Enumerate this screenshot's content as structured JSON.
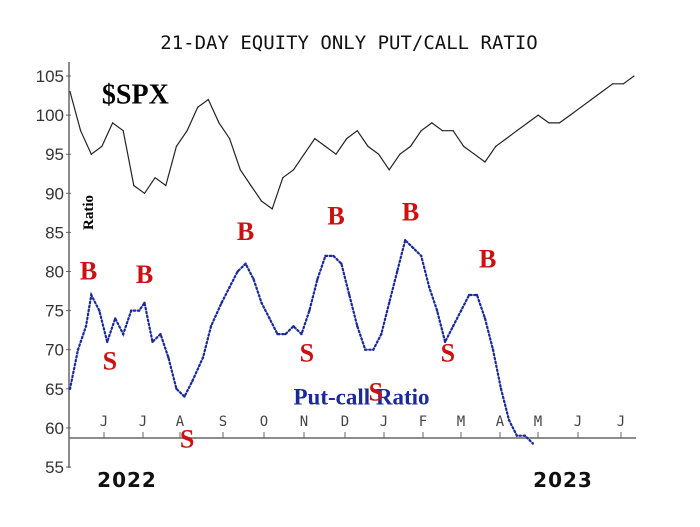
{
  "chart_data": {
    "type": "line",
    "title": "21-DAY EQUITY ONLY PUT/CALL RATIO",
    "ylabel": "Ratio",
    "ylim": [
      55,
      105
    ],
    "yticks": [
      105,
      100,
      95,
      90,
      85,
      80,
      75,
      70,
      65,
      60,
      55
    ],
    "x_month_labels": [
      "J",
      "J",
      "A",
      "S",
      "O",
      "N",
      "D",
      "J",
      "F",
      "M",
      "A",
      "M",
      "J",
      "J"
    ],
    "year_labels": [
      "2022",
      "2023"
    ],
    "grid": false,
    "series": [
      {
        "name": "$SPX",
        "style": "solid",
        "color": "#222222",
        "points": [
          [
            0,
            103
          ],
          [
            4,
            98
          ],
          [
            8,
            95
          ],
          [
            12,
            96
          ],
          [
            16,
            99
          ],
          [
            20,
            98
          ],
          [
            24,
            91
          ],
          [
            28,
            90
          ],
          [
            32,
            92
          ],
          [
            36,
            91
          ],
          [
            40,
            96
          ],
          [
            44,
            98
          ],
          [
            48,
            101
          ],
          [
            52,
            102
          ],
          [
            56,
            99
          ],
          [
            60,
            97
          ],
          [
            64,
            93
          ],
          [
            68,
            91
          ],
          [
            72,
            89
          ],
          [
            76,
            88
          ],
          [
            80,
            92
          ],
          [
            84,
            93
          ],
          [
            88,
            95
          ],
          [
            92,
            97
          ],
          [
            96,
            96
          ],
          [
            100,
            95
          ],
          [
            104,
            97
          ],
          [
            108,
            98
          ],
          [
            112,
            96
          ],
          [
            116,
            95
          ],
          [
            120,
            93
          ],
          [
            124,
            95
          ],
          [
            128,
            96
          ],
          [
            132,
            98
          ],
          [
            136,
            99
          ],
          [
            140,
            98
          ],
          [
            144,
            98
          ],
          [
            148,
            96
          ],
          [
            152,
            95
          ],
          [
            156,
            94
          ],
          [
            160,
            96
          ],
          [
            164,
            97
          ],
          [
            168,
            98
          ],
          [
            172,
            99
          ],
          [
            176,
            100
          ],
          [
            180,
            99
          ],
          [
            184,
            99
          ],
          [
            188,
            100
          ],
          [
            192,
            101
          ],
          [
            196,
            102
          ],
          [
            200,
            103
          ],
          [
            204,
            104
          ],
          [
            208,
            104
          ],
          [
            212,
            105
          ]
        ]
      },
      {
        "name": "Put-call Ratio",
        "style": "dotted",
        "color": "#1a2a99",
        "points": [
          [
            0,
            65
          ],
          [
            3,
            70
          ],
          [
            6,
            73
          ],
          [
            8,
            77
          ],
          [
            11,
            75
          ],
          [
            14,
            71
          ],
          [
            17,
            74
          ],
          [
            20,
            72
          ],
          [
            23,
            75
          ],
          [
            26,
            75
          ],
          [
            28,
            76
          ],
          [
            31,
            71
          ],
          [
            34,
            72
          ],
          [
            37,
            69
          ],
          [
            40,
            65
          ],
          [
            43,
            64
          ],
          [
            46,
            66
          ],
          [
            50,
            69
          ],
          [
            53,
            73
          ],
          [
            57,
            76
          ],
          [
            60,
            78
          ],
          [
            63,
            80
          ],
          [
            66,
            81
          ],
          [
            69,
            79
          ],
          [
            72,
            76
          ],
          [
            75,
            74
          ],
          [
            78,
            72
          ],
          [
            81,
            72
          ],
          [
            84,
            73
          ],
          [
            87,
            72
          ],
          [
            90,
            75
          ],
          [
            93,
            79
          ],
          [
            96,
            82
          ],
          [
            99,
            82
          ],
          [
            102,
            81
          ],
          [
            105,
            77
          ],
          [
            108,
            73
          ],
          [
            111,
            70
          ],
          [
            114,
            70
          ],
          [
            117,
            72
          ],
          [
            120,
            76
          ],
          [
            123,
            80
          ],
          [
            126,
            84
          ],
          [
            129,
            83
          ],
          [
            132,
            82
          ],
          [
            135,
            78
          ],
          [
            138,
            75
          ],
          [
            141,
            71
          ],
          [
            144,
            73
          ],
          [
            147,
            75
          ],
          [
            150,
            77
          ],
          [
            153,
            77
          ],
          [
            156,
            74
          ],
          [
            159,
            70
          ],
          [
            162,
            65
          ],
          [
            165,
            61
          ],
          [
            168,
            59
          ],
          [
            171,
            59
          ],
          [
            174,
            58
          ]
        ]
      }
    ],
    "annotations": [
      {
        "text": "$SPX",
        "x": 12,
        "y": 101.5,
        "color": "#000000"
      },
      {
        "text": "Put-call Ratio",
        "x": 84,
        "y": 63,
        "color": "#1a2a99"
      },
      {
        "text": "B",
        "x": 7,
        "y": 79,
        "color": "#cc1111"
      },
      {
        "text": "S",
        "x": 15,
        "y": 67.5,
        "color": "#cc1111"
      },
      {
        "text": "B",
        "x": 28,
        "y": 78.5,
        "color": "#cc1111"
      },
      {
        "text": "S",
        "x": 44,
        "y": 57.5,
        "color": "#cc1111"
      },
      {
        "text": "B",
        "x": 66,
        "y": 84,
        "color": "#cc1111"
      },
      {
        "text": "S",
        "x": 89,
        "y": 68.5,
        "color": "#cc1111"
      },
      {
        "text": "B",
        "x": 100,
        "y": 86,
        "color": "#cc1111"
      },
      {
        "text": "S",
        "x": 115,
        "y": 63.5,
        "color": "#cc1111"
      },
      {
        "text": "B",
        "x": 128,
        "y": 86.5,
        "color": "#cc1111"
      },
      {
        "text": "S",
        "x": 142,
        "y": 68.5,
        "color": "#cc1111"
      },
      {
        "text": "B",
        "x": 157,
        "y": 80.5,
        "color": "#cc1111"
      }
    ]
  }
}
